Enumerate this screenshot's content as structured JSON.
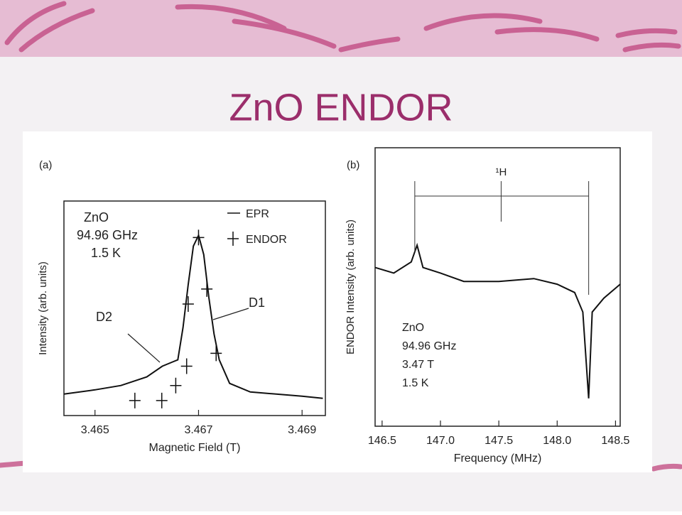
{
  "title": "ZnO ENDOR",
  "chart_data": [
    {
      "type": "line",
      "panel": "(a)",
      "xlabel": "Magnetic Field (T)",
      "ylabel": "Intensity (arb. units)",
      "xlim": [
        3.4644,
        3.46945
      ],
      "xticks": [
        3.465,
        3.467,
        3.469
      ],
      "ylim": [
        0,
        1
      ],
      "color": "#111111",
      "annotations": [
        "ZnO",
        "94.96 GHz",
        "1.5 K",
        "D1",
        "D2"
      ],
      "series": [
        {
          "name": "EPR",
          "style": "line",
          "color": "#111111",
          "x": [
            3.4644,
            3.465,
            3.4655,
            3.466,
            3.4663,
            3.4665,
            3.4666,
            3.4667,
            3.4668,
            3.4669,
            3.467,
            3.4671,
            3.4672,
            3.4673,
            3.4674,
            3.4676,
            3.468,
            3.4685,
            3.469,
            3.4694
          ],
          "values": [
            0.1,
            0.12,
            0.14,
            0.18,
            0.23,
            0.25,
            0.26,
            0.41,
            0.61,
            0.79,
            0.84,
            0.75,
            0.55,
            0.38,
            0.26,
            0.15,
            0.11,
            0.1,
            0.09,
            0.08
          ]
        },
        {
          "name": "ENDOR",
          "style": "cross",
          "color": "#111111",
          "x": [
            3.46577,
            3.46629,
            3.46656,
            3.46677,
            3.4668,
            3.467,
            3.46716,
            3.46734
          ],
          "values": [
            0.07,
            0.07,
            0.14,
            0.23,
            0.52,
            0.83,
            0.59,
            0.29
          ]
        }
      ]
    },
    {
      "type": "line",
      "panel": "(b)",
      "xlabel": "Frequency (MHz)",
      "ylabel": "ENDOR Intensity (arb. units)",
      "xlim": [
        146.44,
        148.54
      ],
      "xticks": [
        146.5,
        {
          "value": 147,
          "label": "147.0"
        },
        147.5,
        {
          "value": 148,
          "label": "148.0"
        },
        148.5
      ],
      "ylim": [
        0,
        1
      ],
      "color": "#111111",
      "annotations": [
        "ZnO",
        "94.96 GHz",
        "3.47 T",
        "1.5 K"
      ],
      "marker_label": "¹H",
      "markers": [
        146.78,
        147.52,
        148.27
      ],
      "series": [
        {
          "style": "line",
          "color": "#111111",
          "x": [
            146.44,
            146.6,
            146.75,
            146.8,
            146.85,
            147.0,
            147.2,
            147.5,
            147.8,
            148.0,
            148.15,
            148.22,
            148.27,
            148.3,
            148.4,
            148.54
          ],
          "values": [
            0.57,
            0.55,
            0.59,
            0.65,
            0.57,
            0.55,
            0.52,
            0.52,
            0.53,
            0.51,
            0.48,
            0.41,
            0.1,
            0.41,
            0.46,
            0.51
          ]
        }
      ]
    }
  ]
}
